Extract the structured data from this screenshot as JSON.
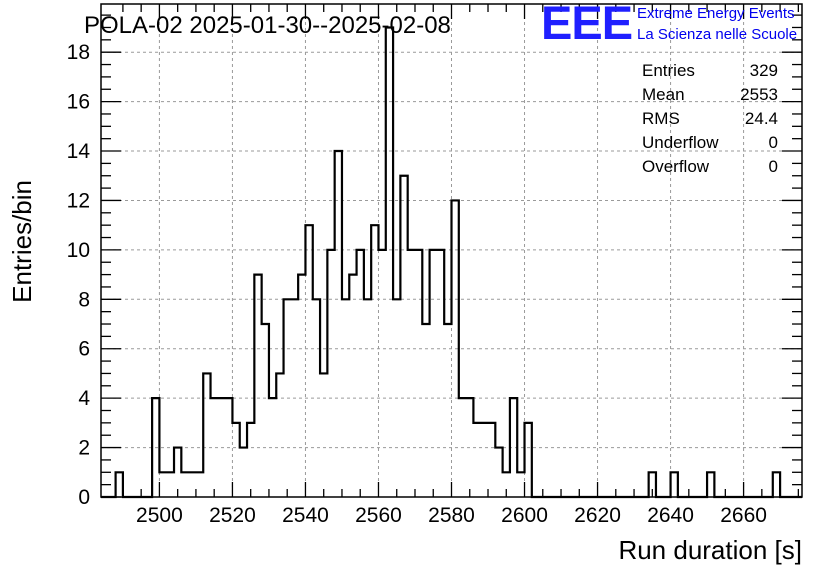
{
  "chart_data": {
    "type": "histogram",
    "title": "POLA-02 2025-01-30--2025-02-08",
    "xlabel": "Run duration [s]",
    "ylabel": "Entries/bin",
    "xlim": [
      2484,
      2676
    ],
    "ylim": [
      0,
      19.95
    ],
    "bin_width": 2,
    "grid": true,
    "x_ticks": [
      2500,
      2520,
      2540,
      2560,
      2580,
      2600,
      2620,
      2640,
      2660
    ],
    "y_ticks": [
      0,
      2,
      4,
      6,
      8,
      10,
      12,
      14,
      16,
      18
    ],
    "x_tick_labels": [
      "2500",
      "2520",
      "2540",
      "2560",
      "2580",
      "2600",
      "2620",
      "2640",
      "2660"
    ],
    "y_tick_labels": [
      "0",
      "2",
      "4",
      "6",
      "8",
      "10",
      "12",
      "14",
      "16",
      "18"
    ],
    "bin_low_edges": [
      2484,
      2486,
      2488,
      2490,
      2492,
      2494,
      2496,
      2498,
      2500,
      2502,
      2504,
      2506,
      2508,
      2510,
      2512,
      2514,
      2516,
      2518,
      2520,
      2522,
      2524,
      2526,
      2528,
      2530,
      2532,
      2534,
      2536,
      2538,
      2540,
      2542,
      2544,
      2546,
      2548,
      2550,
      2552,
      2554,
      2556,
      2558,
      2560,
      2562,
      2564,
      2566,
      2568,
      2570,
      2572,
      2574,
      2576,
      2578,
      2580,
      2582,
      2584,
      2586,
      2588,
      2590,
      2592,
      2594,
      2596,
      2598,
      2600,
      2602,
      2604,
      2606,
      2608,
      2610,
      2612,
      2614,
      2616,
      2618,
      2620,
      2622,
      2624,
      2626,
      2628,
      2630,
      2632,
      2634,
      2636,
      2638,
      2640,
      2642,
      2644,
      2646,
      2648,
      2650,
      2652,
      2654,
      2656,
      2658,
      2660,
      2662,
      2664,
      2666,
      2668,
      2670,
      2672,
      2674
    ],
    "counts": [
      0,
      0,
      1,
      0,
      0,
      0,
      0,
      4,
      1,
      1,
      2,
      1,
      1,
      1,
      5,
      4,
      4,
      4,
      3,
      2,
      3,
      9,
      7,
      4,
      5,
      8,
      8,
      9,
      11,
      8,
      5,
      10,
      14,
      8,
      9,
      10,
      8,
      11,
      10,
      19,
      8,
      13,
      10,
      10,
      7,
      10,
      10,
      7,
      12,
      4,
      4,
      3,
      3,
      3,
      2,
      1,
      4,
      1,
      3,
      0,
      0,
      0,
      0,
      0,
      0,
      0,
      0,
      0,
      0,
      0,
      0,
      0,
      0,
      0,
      0,
      1,
      0,
      0,
      1,
      0,
      0,
      0,
      0,
      1,
      0,
      0,
      0,
      0,
      0,
      0,
      0,
      0,
      1,
      0,
      0,
      0
    ],
    "stats": {
      "rows": [
        {
          "name": "Entries",
          "value": "329"
        },
        {
          "name": "Mean",
          "value": "2553"
        },
        {
          "name": "RMS",
          "value": "24.4"
        },
        {
          "name": "Underflow",
          "value": "0"
        },
        {
          "name": "Overflow",
          "value": "0"
        }
      ]
    }
  },
  "logo": {
    "mark": "EEE",
    "line1": "Extreme Energy Events",
    "line2": "La Scienza nelle Scuole",
    "color": "#1f1fff"
  }
}
